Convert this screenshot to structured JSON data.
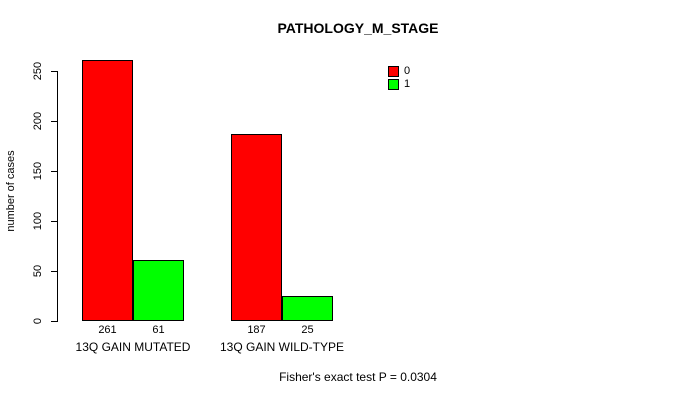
{
  "chart_data": {
    "type": "bar",
    "title": "PATHOLOGY_M_STAGE",
    "ylabel": "number of cases",
    "xlabel": "",
    "categories": [
      "13Q GAIN MUTATED",
      "13Q GAIN WILD-TYPE"
    ],
    "series": [
      {
        "name": "0",
        "color": "#ff0000",
        "values": [
          261,
          187
        ]
      },
      {
        "name": "1",
        "color": "#00ff00",
        "values": [
          61,
          25
        ]
      }
    ],
    "bar_value_labels": [
      [
        261,
        61
      ],
      [
        187,
        25
      ]
    ],
    "ylim": [
      0,
      250
    ],
    "yticks": [
      0,
      50,
      100,
      150,
      200,
      250
    ],
    "grid": false,
    "legend_position": "top-right",
    "annotation": "Fisher's exact test P = 0.0304"
  }
}
